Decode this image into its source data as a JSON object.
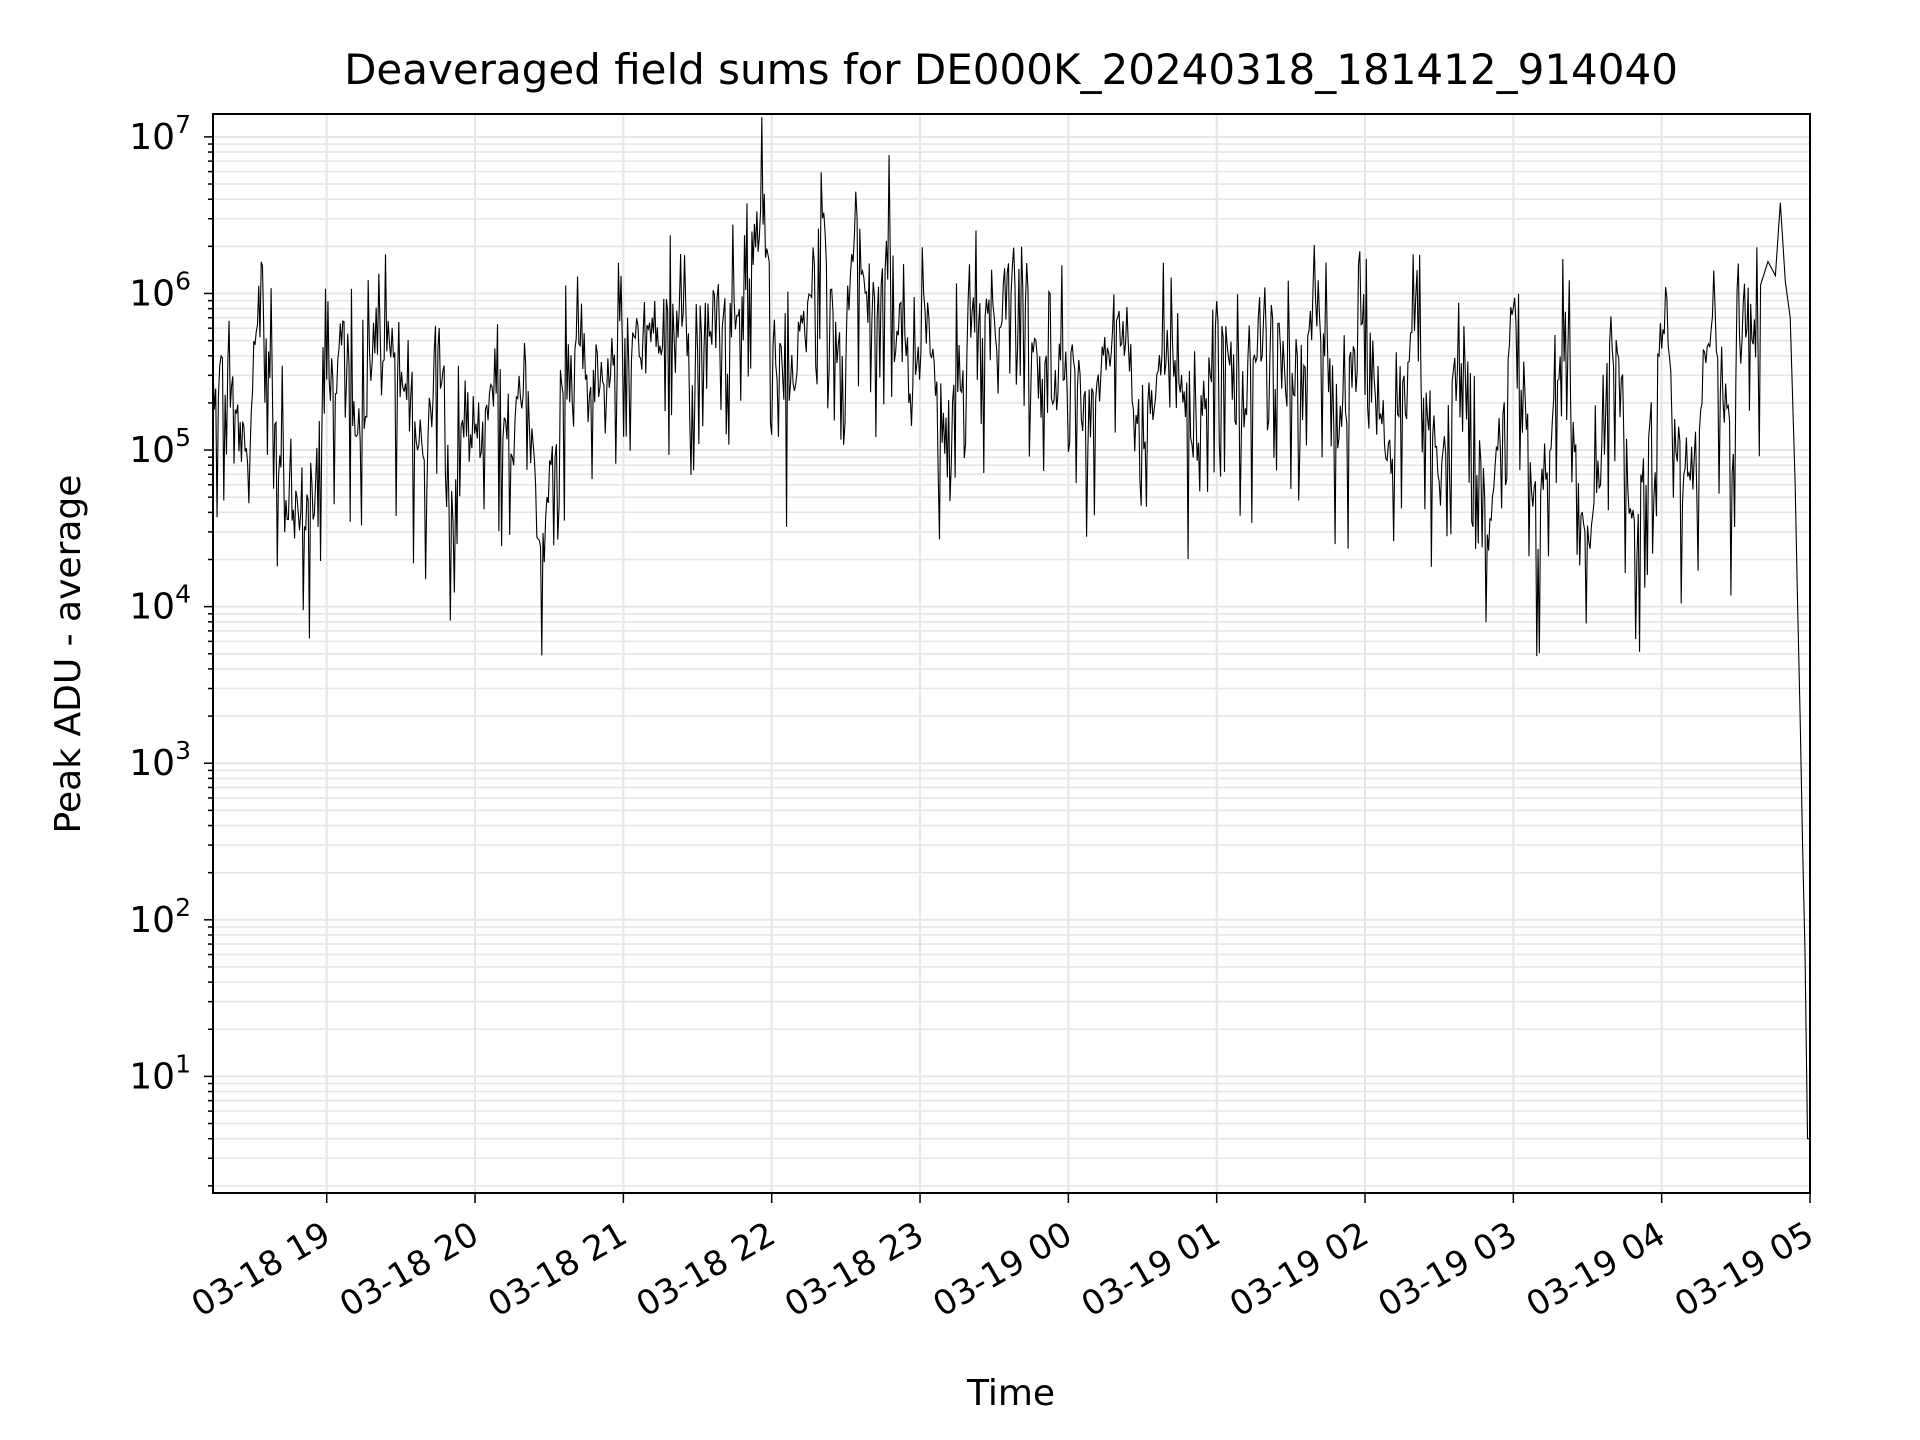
{
  "chart_data": {
    "type": "line",
    "title": "Deaveraged field sums for DE000K_20240318_181412_914040",
    "xlabel": "Time",
    "ylabel": "Peak ADU - average",
    "yscale": "log",
    "grid": true,
    "grid_color": "#e6e6e6",
    "line_color": "#000000",
    "xlim": [
      "2024-03-18 18:14",
      "2024-03-19 05:00"
    ],
    "ylim": [
      1.8,
      14000000
    ],
    "x_ticks": [
      "03-18 19",
      "03-18 20",
      "03-18 21",
      "03-18 22",
      "03-18 23",
      "03-19 00",
      "03-19 01",
      "03-19 02",
      "03-19 03",
      "03-19 04",
      "03-19 05"
    ],
    "x_tick_times": [
      "2024-03-18 19:00",
      "2024-03-18 20:00",
      "2024-03-18 21:00",
      "2024-03-18 22:00",
      "2024-03-18 23:00",
      "2024-03-19 00:00",
      "2024-03-19 01:00",
      "2024-03-19 02:00",
      "2024-03-19 03:00",
      "2024-03-19 04:00",
      "2024-03-19 05:00"
    ],
    "y_ticks": [
      {
        "value": 10,
        "base": "10",
        "exp": "1"
      },
      {
        "value": 100,
        "base": "10",
        "exp": "2"
      },
      {
        "value": 1000,
        "base": "10",
        "exp": "3"
      },
      {
        "value": 10000,
        "base": "10",
        "exp": "4"
      },
      {
        "value": 100000,
        "base": "10",
        "exp": "5"
      },
      {
        "value": 1000000,
        "base": "10",
        "exp": "6"
      },
      {
        "value": 10000000,
        "base": "10",
        "exp": "7"
      }
    ],
    "series": [
      {
        "x": [
          "2024-03-18 18:14",
          "2024-03-18 18:20",
          "2024-03-18 18:25",
          "2024-03-18 18:29",
          "2024-03-18 18:33",
          "2024-03-18 18:36",
          "2024-03-18 18:40",
          "2024-03-18 18:45",
          "2024-03-18 18:50",
          "2024-03-18 18:55",
          "2024-03-18 19:00",
          "2024-03-18 19:03",
          "2024-03-18 19:06",
          "2024-03-18 19:09",
          "2024-03-18 19:13",
          "2024-03-18 19:20",
          "2024-03-18 19:27",
          "2024-03-18 19:34",
          "2024-03-18 19:40",
          "2024-03-18 19:45",
          "2024-03-18 19:50",
          "2024-03-18 19:56",
          "2024-03-18 20:02",
          "2024-03-18 20:08",
          "2024-03-18 20:14",
          "2024-03-18 20:20",
          "2024-03-18 20:24",
          "2024-03-18 20:28",
          "2024-03-18 20:34",
          "2024-03-18 20:42",
          "2024-03-18 20:50",
          "2024-03-18 20:58",
          "2024-03-18 21:08",
          "2024-03-18 21:20",
          "2024-03-18 21:30",
          "2024-03-18 21:40",
          "2024-03-18 21:48",
          "2024-03-18 21:52",
          "2024-03-18 21:56",
          "2024-03-18 22:00",
          "2024-03-18 22:06",
          "2024-03-18 22:14",
          "2024-03-18 22:20",
          "2024-03-18 22:28",
          "2024-03-18 22:34",
          "2024-03-18 22:40",
          "2024-03-18 22:48",
          "2024-03-18 22:56",
          "2024-03-18 23:02",
          "2024-03-18 23:10",
          "2024-03-18 23:20",
          "2024-03-18 23:30",
          "2024-03-18 23:40",
          "2024-03-18 23:50",
          "2024-03-19 00:00",
          "2024-03-19 00:10",
          "2024-03-19 00:20",
          "2024-03-19 00:30",
          "2024-03-19 00:40",
          "2024-03-19 00:50",
          "2024-03-19 01:00",
          "2024-03-19 01:10",
          "2024-03-19 01:20",
          "2024-03-19 01:30",
          "2024-03-19 01:40",
          "2024-03-19 01:50",
          "2024-03-19 02:00",
          "2024-03-19 02:10",
          "2024-03-19 02:20",
          "2024-03-19 02:30",
          "2024-03-19 02:40",
          "2024-03-19 02:50",
          "2024-03-19 03:00",
          "2024-03-19 03:10",
          "2024-03-19 03:20",
          "2024-03-19 03:30",
          "2024-03-19 03:40",
          "2024-03-19 03:50",
          "2024-03-19 04:00",
          "2024-03-19 04:10",
          "2024-03-19 04:20",
          "2024-03-19 04:28",
          "2024-03-19 04:33",
          "2024-03-19 04:38",
          "2024-03-19 04:43",
          "2024-03-19 04:46",
          "2024-03-19 04:48",
          "2024-03-19 04:50",
          "2024-03-19 04:52",
          "2024-03-19 04:54",
          "2024-03-19 04:55",
          "2024-03-19 04:56",
          "2024-03-19 04:57",
          "2024-03-19 04:58",
          "2024-03-19 04:59",
          "2024-03-19 05:00"
        ],
        "y": [
          450000,
          500000,
          200000,
          100000,
          3300000,
          700000,
          250000,
          70000,
          55000,
          100000,
          600000,
          250000,
          1100000,
          500000,
          200000,
          1000000,
          650000,
          350000,
          120000,
          1000000,
          70000,
          300000,
          200000,
          500000,
          130000,
          500000,
          90000,
          40000,
          350000,
          700000,
          450000,
          700000,
          800000,
          1000000,
          900000,
          1200000,
          1000000,
          3000000,
          6800000,
          1200000,
          400000,
          1000000,
          6500000,
          500000,
          4800000,
          1000000,
          3500000,
          300000,
          1200000,
          200000,
          1000000,
          900000,
          3000000,
          400000,
          600000,
          250000,
          1300000,
          200000,
          800000,
          150000,
          1000000,
          300000,
          1200000,
          400000,
          1300000,
          200000,
          1300000,
          150000,
          1200000,
          100000,
          1100000,
          60000,
          1000000,
          50000,
          1100000,
          40000,
          1000000,
          45000,
          1000000,
          60000,
          1300000,
          150000,
          1400000,
          900000,
          1600000,
          1300000,
          3800000,
          1200000,
          700000,
          60000,
          10000,
          2000,
          300,
          60,
          4,
          4
        ]
      }
    ]
  }
}
